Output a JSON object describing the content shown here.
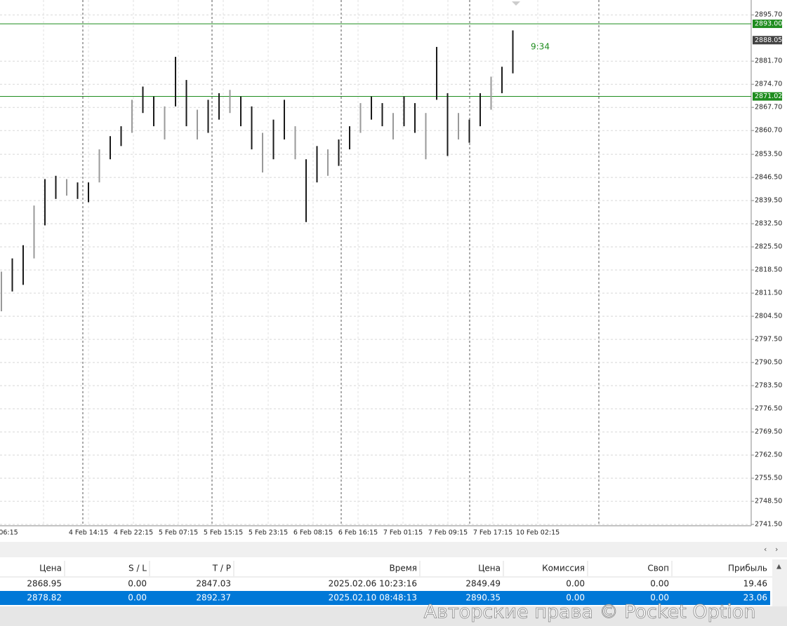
{
  "chart_data": {
    "type": "hilo",
    "color": "#1a1a1a",
    "highs": [
      2818,
      2822,
      2826,
      2838,
      2846,
      2847,
      2846,
      2845,
      2845,
      2855,
      2859,
      2862,
      2870,
      2874,
      2871,
      2868,
      2883,
      2876,
      2867,
      2870,
      2872,
      2873,
      2871,
      2868,
      2860,
      2864,
      2870,
      2862,
      2852,
      2856,
      2855,
      2858,
      2862,
      2869,
      2871,
      2869,
      2866,
      2871,
      2869,
      2866,
      2886,
      2872,
      2866,
      2864,
      2872,
      2877,
      2880,
      2891
    ],
    "lows": [
      2806,
      2812,
      2814,
      2822,
      2832,
      2840,
      2841,
      2840,
      2839,
      2845,
      2852,
      2856,
      2860,
      2866,
      2862,
      2858,
      2868,
      2862,
      2858,
      2860,
      2864,
      2866,
      2862,
      2855,
      2848,
      2852,
      2858,
      2852,
      2833,
      2845,
      2847,
      2850,
      2855,
      2860,
      2864,
      2862,
      2858,
      2862,
      2860,
      2852,
      2870,
      2853,
      2858,
      2857,
      2862,
      2867,
      2872,
      2878
    ],
    "ylim": [
      2741.1,
      2900.2
    ],
    "yticks": [
      {
        "value": 2895.7,
        "label": "2895.70"
      },
      {
        "value": 2881.7,
        "label": "2881.70"
      },
      {
        "value": 2874.7,
        "label": "2874.70"
      },
      {
        "value": 2867.7,
        "label": "2867.70"
      },
      {
        "value": 2860.7,
        "label": "2860.70"
      },
      {
        "value": 2853.5,
        "label": "2853.50"
      },
      {
        "value": 2846.5,
        "label": "2846.50"
      },
      {
        "value": 2839.5,
        "label": "2839.50"
      },
      {
        "value": 2832.5,
        "label": "2832.50"
      },
      {
        "value": 2825.5,
        "label": "2825.50"
      },
      {
        "value": 2818.5,
        "label": "2818.50"
      },
      {
        "value": 2811.5,
        "label": "2811.50"
      },
      {
        "value": 2804.5,
        "label": "2804.50"
      },
      {
        "value": 2797.5,
        "label": "2797.50"
      },
      {
        "value": 2790.5,
        "label": "2790.50"
      },
      {
        "value": 2783.5,
        "label": "2783.50"
      },
      {
        "value": 2776.5,
        "label": "2776.50"
      },
      {
        "value": 2769.5,
        "label": "2769.50"
      },
      {
        "value": 2762.5,
        "label": "2762.50"
      },
      {
        "value": 2755.5,
        "label": "2755.50"
      },
      {
        "value": 2748.5,
        "label": "2748.50"
      },
      {
        "value": 2741.5,
        "label": "2741.50"
      }
    ],
    "levels": [
      {
        "value": 2893,
        "label": "2893.00",
        "color": "#1e8c1e"
      },
      {
        "value": 2871.02,
        "label": "2871.02",
        "color": "#1e8c1e"
      }
    ],
    "current_price": {
      "value": 2888.05,
      "label": "2888.05",
      "color": "#444444"
    },
    "countdown": "9:34",
    "xlabels": [
      "06:15",
      "4 Feb 14:15",
      "4 Feb 22:15",
      "5 Feb 07:15",
      "5 Feb 15:15",
      "5 Feb 23:15",
      "6 Feb 08:15",
      "6 Feb 16:15",
      "7 Feb 01:15",
      "7 Feb 09:15",
      "7 Feb 17:15",
      "10 Feb 02:15"
    ]
  },
  "table": {
    "columns": [
      "Цена",
      "S / L",
      "T / P",
      "Время",
      "Цена",
      "Комиссия",
      "Своп",
      "Прибыль"
    ],
    "rows": [
      [
        "2868.95",
        "0.00",
        "2847.03",
        "2025.02.06 10:23:16",
        "2849.49",
        "0.00",
        "0.00",
        "19.46"
      ],
      [
        "2878.82",
        "0.00",
        "2892.37",
        "2025.02.10 08:48:13",
        "2890.35",
        "0.00",
        "0.00",
        "23.06"
      ]
    ]
  },
  "watermark": "Авторские права © Pocket Option"
}
